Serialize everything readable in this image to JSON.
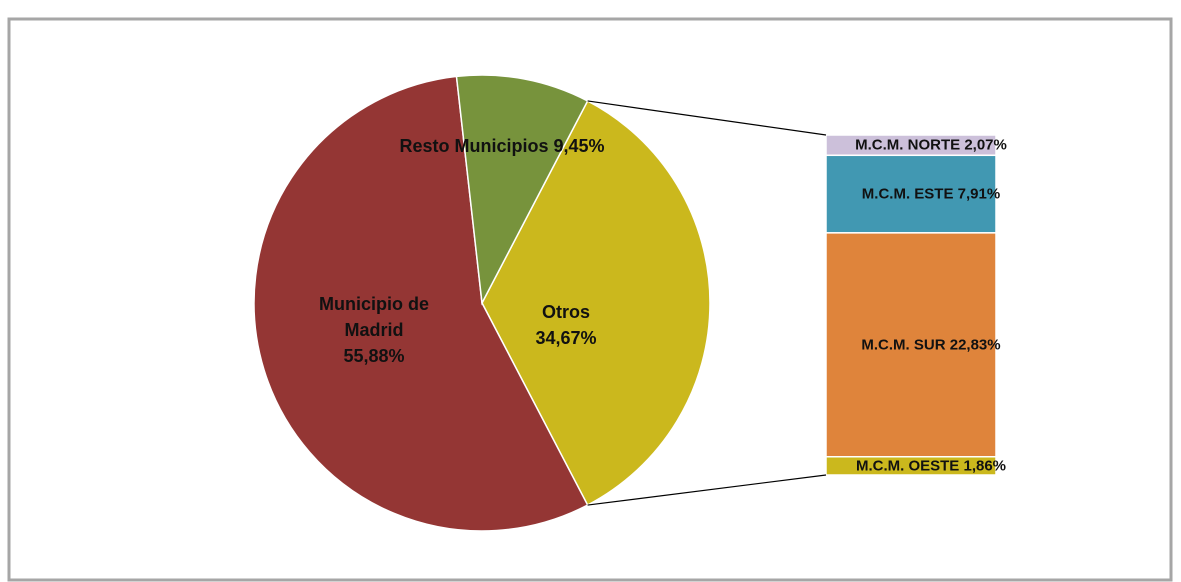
{
  "chart_data": {
    "type": "pie-of-bar",
    "categories": [
      "Municipio de Madrid",
      "Resto Municipios",
      "Otros"
    ],
    "values": [
      55.88,
      9.45,
      34.67
    ],
    "value_labels": [
      "55,88%",
      "9,45%",
      "34,67%"
    ],
    "colors": [
      "#943634",
      "#77933c",
      "#cbb81d"
    ],
    "bar": {
      "categories": [
        "M.C.M. NORTE",
        "M.C.M. ESTE",
        "M.C.M. SUR",
        "M.C.M. OESTE"
      ],
      "values": [
        2.07,
        7.91,
        22.83,
        1.86
      ],
      "value_labels": [
        "2,07%",
        "7,91%",
        "22,83%",
        "1,86%"
      ],
      "colors": [
        "#ccc0da",
        "#4198b2",
        "#df843b",
        "#cbb81d"
      ]
    }
  }
}
